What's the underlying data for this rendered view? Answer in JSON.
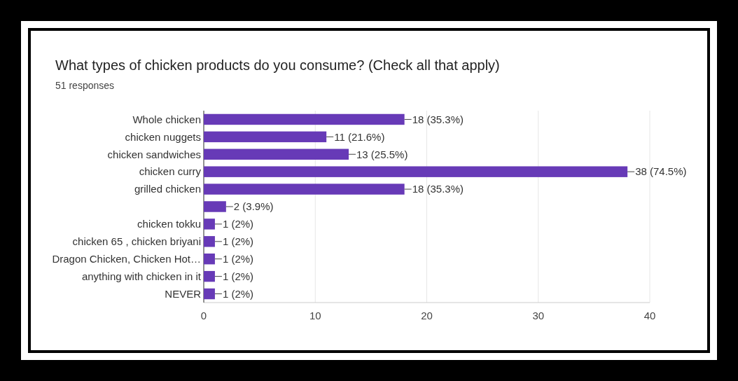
{
  "chart_data": {
    "type": "bar",
    "orientation": "horizontal",
    "title": "What types of chicken products do you consume? (Check all that apply)",
    "subtitle": "51 responses",
    "categories": [
      "Whole chicken",
      "chicken nuggets",
      "chicken sandwiches",
      "chicken curry",
      "grilled chicken",
      null,
      "chicken tokku",
      "chicken 65 , chicken briyani",
      "Dragon Chicken, Chicken Hot…",
      "anything with chicken in it",
      "NEVER"
    ],
    "values": [
      18,
      11,
      13,
      38,
      18,
      2,
      1,
      1,
      1,
      1,
      1
    ],
    "value_labels": [
      "18 (35.3%)",
      "11 (21.6%)",
      "13 (25.5%)",
      "38 (74.5%)",
      "18 (35.3%)",
      "2 (3.9%)",
      "1 (2%)",
      "1 (2%)",
      "1 (2%)",
      "1 (2%)",
      "1 (2%)"
    ],
    "color": "#673ab7",
    "xlim": [
      0,
      40
    ],
    "xticks": [
      0,
      10,
      20,
      30,
      40
    ],
    "grid": "x"
  }
}
